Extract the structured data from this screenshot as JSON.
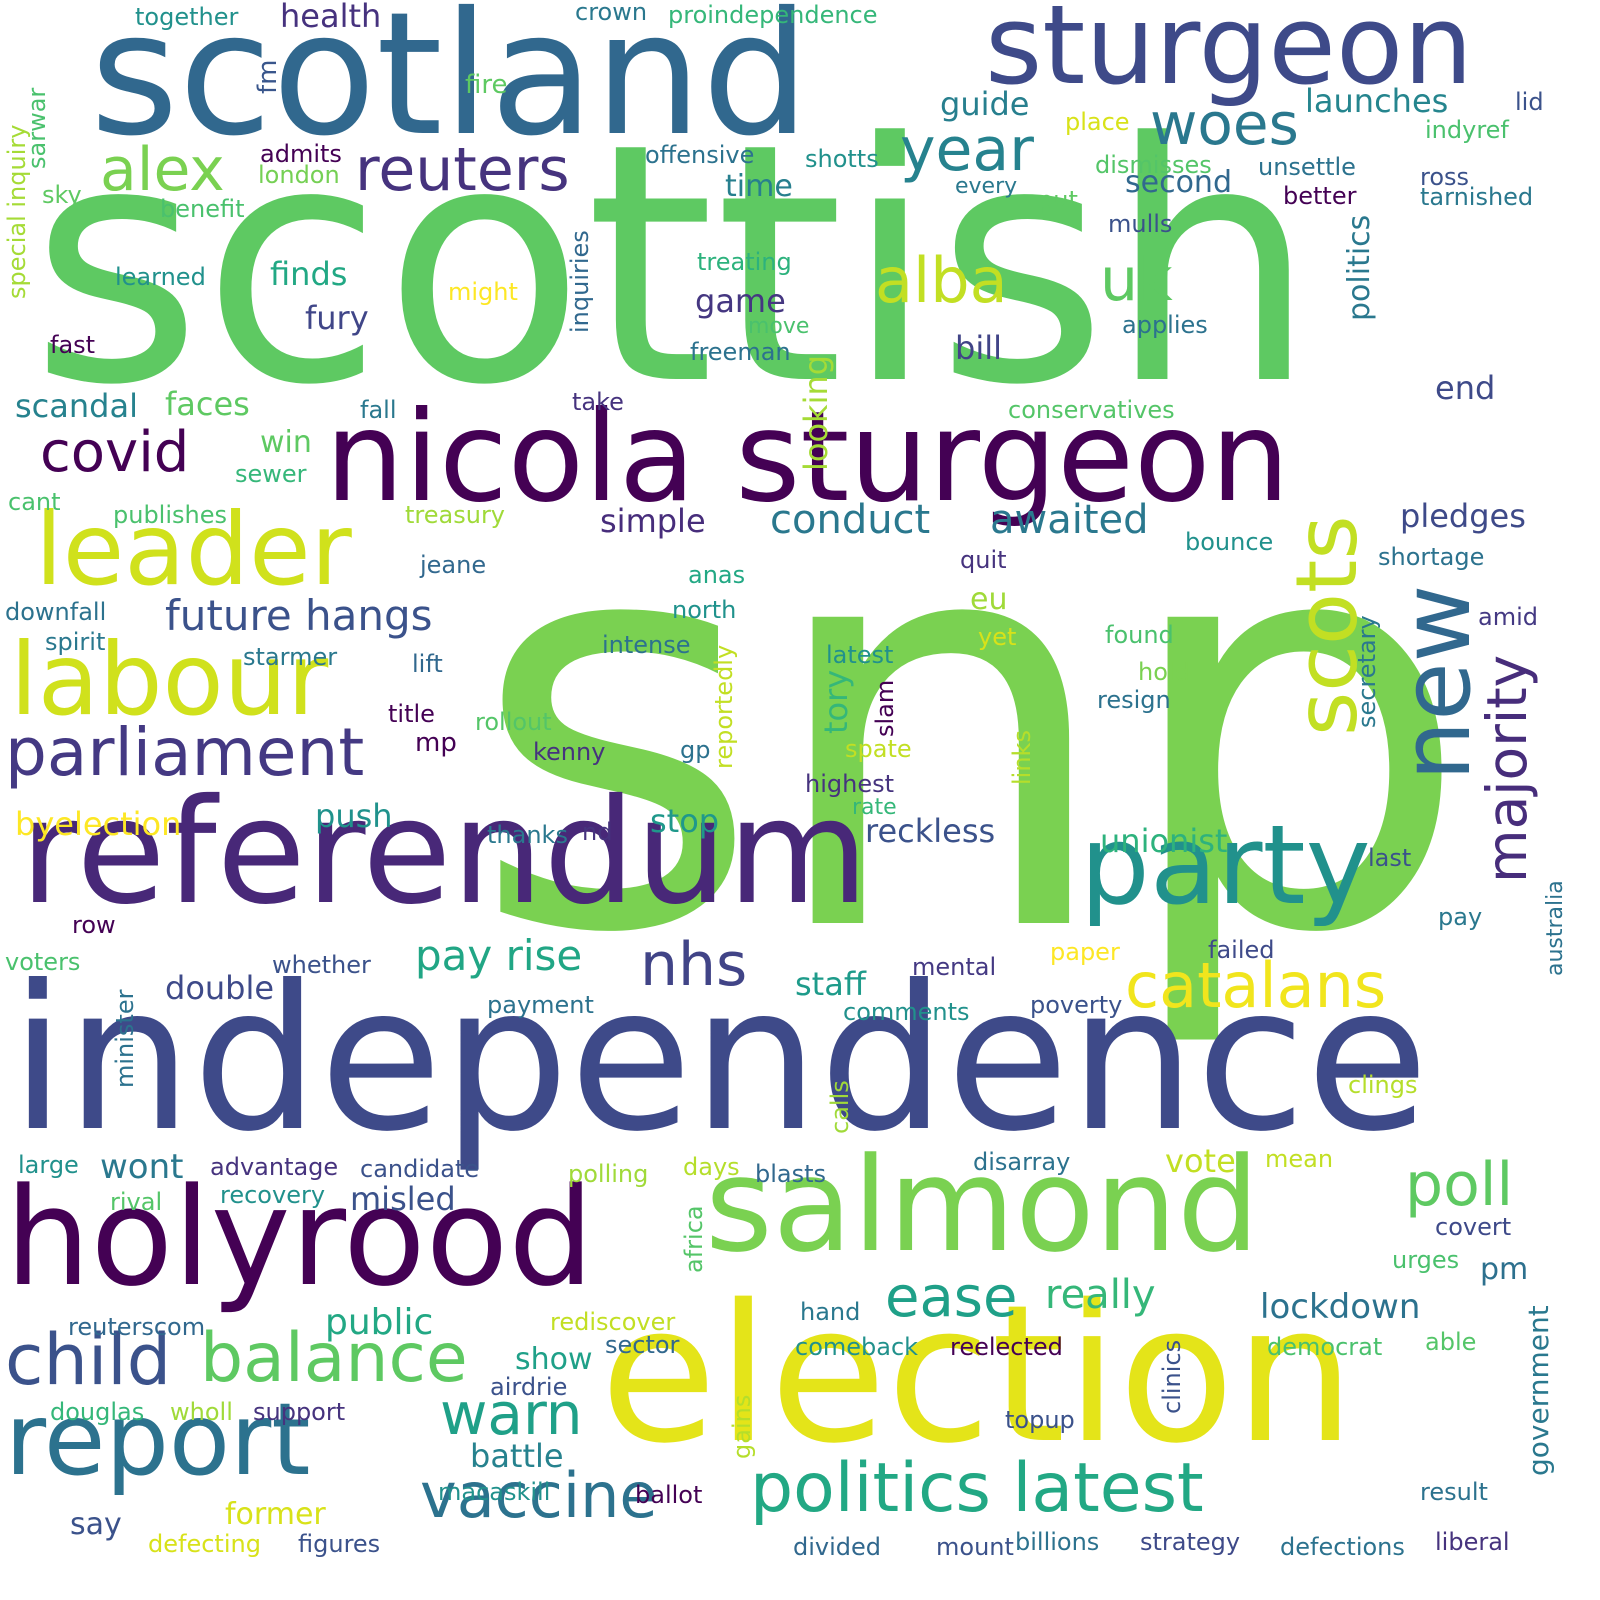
{
  "words": [
    {
      "t": "snp",
      "c": "#7ad151"
    },
    {
      "t": "scottish",
      "c": "#5ec962"
    },
    {
      "t": "independence",
      "c": "#3e4a89"
    },
    {
      "t": "scotland",
      "c": "#31688e"
    },
    {
      "t": "referendum",
      "c": "#482878"
    },
    {
      "t": "election",
      "c": "#e4e419"
    },
    {
      "t": "nicola sturgeon",
      "c": "#440154"
    },
    {
      "t": "sturgeon",
      "c": "#3e4a89"
    },
    {
      "t": "salmond",
      "c": "#7ad151"
    },
    {
      "t": "holyrood",
      "c": "#440154"
    },
    {
      "t": "new",
      "c": "#31688e"
    },
    {
      "t": "leader",
      "c": "#d0e11c"
    },
    {
      "t": "labour",
      "c": "#d0e11c"
    },
    {
      "t": "party",
      "c": "#21918c"
    },
    {
      "t": "scots",
      "c": "#c2df23"
    },
    {
      "t": "report",
      "c": "#2c728e"
    },
    {
      "t": "politics latest",
      "c": "#22a884"
    },
    {
      "t": "reuters",
      "c": "#46337e"
    },
    {
      "t": "parliament",
      "c": "#443983"
    },
    {
      "t": "alex",
      "c": "#7ad151"
    },
    {
      "t": "alba",
      "c": "#c2df23"
    },
    {
      "t": "uk",
      "c": "#5ec962"
    },
    {
      "t": "woes",
      "c": "#2a788e"
    },
    {
      "t": "year",
      "c": "#26828e"
    },
    {
      "t": "covid",
      "c": "#440154"
    },
    {
      "t": "catalans",
      "c": "#f1e51d"
    },
    {
      "t": "majority",
      "c": "#472d7b"
    },
    {
      "t": "balance",
      "c": "#5ec962"
    },
    {
      "t": "child",
      "c": "#3b528b"
    },
    {
      "t": "vaccine",
      "c": "#2c728e"
    },
    {
      "t": "warn",
      "c": "#1fa088"
    },
    {
      "t": "poll",
      "c": "#5ec962"
    },
    {
      "t": "ease",
      "c": "#1fa088"
    },
    {
      "t": "nhs",
      "c": "#414487"
    },
    {
      "t": "pay rise",
      "c": "#21a685"
    },
    {
      "t": "conduct",
      "c": "#2a788e"
    },
    {
      "t": "awaited",
      "c": "#2a788e"
    },
    {
      "t": "future hangs",
      "c": "#3b528b"
    },
    {
      "t": "really",
      "c": "#35b779"
    },
    {
      "t": "lockdown",
      "c": "#2c728e"
    },
    {
      "t": "public",
      "c": "#22a884"
    },
    {
      "t": "government",
      "c": "#2a788e"
    },
    {
      "t": "politics",
      "c": "#2a788e"
    },
    {
      "t": "launches",
      "c": "#25858e"
    },
    {
      "t": "guide",
      "c": "#277f8e"
    },
    {
      "t": "second",
      "c": "#31688e"
    },
    {
      "t": "finds",
      "c": "#22a884"
    },
    {
      "t": "fury",
      "c": "#404688"
    },
    {
      "t": "game",
      "c": "#453781"
    },
    {
      "t": "bill",
      "c": "#414487"
    },
    {
      "t": "scandal",
      "c": "#26828e"
    },
    {
      "t": "faces",
      "c": "#5ec962"
    },
    {
      "t": "byelection",
      "c": "#fde725"
    },
    {
      "t": "push",
      "c": "#20928c"
    },
    {
      "t": "stop",
      "c": "#1f988b"
    },
    {
      "t": "reckless",
      "c": "#3b528b"
    },
    {
      "t": "unionist",
      "c": "#2db27d"
    },
    {
      "t": "double",
      "c": "#3e4a89"
    },
    {
      "t": "staff",
      "c": "#1e9b8a"
    },
    {
      "t": "simple",
      "c": "#472d7b"
    },
    {
      "t": "pledges",
      "c": "#3e4a89"
    },
    {
      "t": "misled",
      "c": "#3b528b"
    },
    {
      "t": "wont",
      "c": "#2a788e"
    },
    {
      "t": "vote",
      "c": "#c2df23"
    },
    {
      "t": "battle",
      "c": "#26828e"
    },
    {
      "t": "show",
      "c": "#1fa088"
    },
    {
      "t": "former",
      "c": "#d8e219"
    },
    {
      "t": "say",
      "c": "#3b528b"
    },
    {
      "t": "pm",
      "c": "#2d708e"
    },
    {
      "t": "health",
      "c": "#46327e"
    },
    {
      "t": "time",
      "c": "#277f8e"
    },
    {
      "t": "looking",
      "c": "#a5db36"
    },
    {
      "t": "tory",
      "c": "#35b779"
    },
    {
      "t": "win",
      "c": "#5ec962"
    },
    {
      "t": "eu",
      "c": "#a0da39"
    },
    {
      "t": "end",
      "c": "#3e4a89"
    },
    {
      "t": "mp",
      "c": "#440154"
    },
    {
      "t": "together",
      "c": "#21918c"
    },
    {
      "t": "crown",
      "c": "#2a788e"
    },
    {
      "t": "proindependence",
      "c": "#35b779"
    },
    {
      "t": "fire",
      "c": "#5ec962"
    },
    {
      "t": "fm",
      "c": "#39568c"
    },
    {
      "t": "sarwar",
      "c": "#4ac16d"
    },
    {
      "t": "special inquiry",
      "c": "#a5db36"
    },
    {
      "t": "lid",
      "c": "#3b528b"
    },
    {
      "t": "place",
      "c": "#d8e219"
    },
    {
      "t": "indyref",
      "c": "#4ac16d"
    },
    {
      "t": "admits",
      "c": "#440154"
    },
    {
      "t": "london",
      "c": "#75d054"
    },
    {
      "t": "offensive",
      "c": "#2c728e"
    },
    {
      "t": "shotts",
      "c": "#21918c"
    },
    {
      "t": "dismisses",
      "c": "#54c568"
    },
    {
      "t": "unsettle",
      "c": "#2c728e"
    },
    {
      "t": "ross",
      "c": "#3b528b"
    },
    {
      "t": "tarnished",
      "c": "#2a788e"
    },
    {
      "t": "sky",
      "c": "#5ec962"
    },
    {
      "t": "benefit",
      "c": "#4ac16d"
    },
    {
      "t": "every",
      "c": "#2a788e"
    },
    {
      "t": "put",
      "c": "#5ec962"
    },
    {
      "t": "better",
      "c": "#440154"
    },
    {
      "t": "mulls",
      "c": "#3b528b"
    },
    {
      "t": "treating",
      "c": "#2db27d"
    },
    {
      "t": "inquiries",
      "c": "#31688e"
    },
    {
      "t": "learned",
      "c": "#21918c"
    },
    {
      "t": "might",
      "c": "#fde725"
    },
    {
      "t": "move",
      "c": "#4ac16d"
    },
    {
      "t": "applies",
      "c": "#2c728e"
    },
    {
      "t": "fast",
      "c": "#440154"
    },
    {
      "t": "freeman",
      "c": "#2c728e"
    },
    {
      "t": "take",
      "c": "#46337e"
    },
    {
      "t": "fall",
      "c": "#2a788e"
    },
    {
      "t": "conservatives",
      "c": "#54c568"
    },
    {
      "t": "sewer",
      "c": "#35b779"
    },
    {
      "t": "cant",
      "c": "#4ac16d"
    },
    {
      "t": "publishes",
      "c": "#4ac16d"
    },
    {
      "t": "treasury",
      "c": "#a0da39"
    },
    {
      "t": "jeane",
      "c": "#31688e"
    },
    {
      "t": "quit",
      "c": "#46337e"
    },
    {
      "t": "bounce",
      "c": "#21918c"
    },
    {
      "t": "shortage",
      "c": "#2c728e"
    },
    {
      "t": "anas",
      "c": "#22a884"
    },
    {
      "t": "downfall",
      "c": "#2c728e"
    },
    {
      "t": "north",
      "c": "#20928c"
    },
    {
      "t": "found",
      "c": "#4ac16d"
    },
    {
      "t": "amid",
      "c": "#443983"
    },
    {
      "t": "spirit",
      "c": "#2a788e"
    },
    {
      "t": "intense",
      "c": "#2c728e"
    },
    {
      "t": "yet",
      "c": "#d8e219"
    },
    {
      "t": "starmer",
      "c": "#2a788e"
    },
    {
      "t": "lift",
      "c": "#31688e"
    },
    {
      "t": "latest",
      "c": "#21918c"
    },
    {
      "t": "hold",
      "c": "#7ad151"
    },
    {
      "t": "secretary",
      "c": "#2a788e"
    },
    {
      "t": "reportedly",
      "c": "#c2df23"
    },
    {
      "t": "slam",
      "c": "#440154"
    },
    {
      "t": "resign",
      "c": "#2c728e"
    },
    {
      "t": "title",
      "c": "#440154"
    },
    {
      "t": "rollout",
      "c": "#54c568"
    },
    {
      "t": "kenny",
      "c": "#46337e"
    },
    {
      "t": "gp",
      "c": "#2c728e"
    },
    {
      "t": "spate",
      "c": "#c2df23"
    },
    {
      "t": "highest",
      "c": "#46337e"
    },
    {
      "t": "links",
      "c": "#b5de2b"
    },
    {
      "t": "rate",
      "c": "#35b779"
    },
    {
      "t": "thanks",
      "c": "#2a788e"
    },
    {
      "t": "nd",
      "c": "#46337e"
    },
    {
      "t": "last",
      "c": "#3b528b"
    },
    {
      "t": "row",
      "c": "#440154"
    },
    {
      "t": "australia",
      "c": "#2c728e"
    },
    {
      "t": "pay",
      "c": "#2a788e"
    },
    {
      "t": "failed",
      "c": "#3e4a89"
    },
    {
      "t": "paper",
      "c": "#fde725"
    },
    {
      "t": "voters",
      "c": "#4ac16d"
    },
    {
      "t": "minister",
      "c": "#2c728e"
    },
    {
      "t": "whether",
      "c": "#3b528b"
    },
    {
      "t": "mental",
      "c": "#443983"
    },
    {
      "t": "payment",
      "c": "#2c728e"
    },
    {
      "t": "comments",
      "c": "#21918c"
    },
    {
      "t": "poverty",
      "c": "#3b528b"
    },
    {
      "t": "calls",
      "c": "#a0da39"
    },
    {
      "t": "clings",
      "c": "#b5de2b"
    },
    {
      "t": "large",
      "c": "#21918c"
    },
    {
      "t": "advantage",
      "c": "#46337e"
    },
    {
      "t": "candidate",
      "c": "#3b528b"
    },
    {
      "t": "polling",
      "c": "#a0da39"
    },
    {
      "t": "days",
      "c": "#b5de2b"
    },
    {
      "t": "blasts",
      "c": "#31688e"
    },
    {
      "t": "disarray",
      "c": "#2c728e"
    },
    {
      "t": "mean",
      "c": "#c2df23"
    },
    {
      "t": "rival",
      "c": "#54c568"
    },
    {
      "t": "recovery",
      "c": "#21918c"
    },
    {
      "t": "africa",
      "c": "#54c568"
    },
    {
      "t": "covert",
      "c": "#3e4a89"
    },
    {
      "t": "urges",
      "c": "#4ac16d"
    },
    {
      "t": "hand",
      "c": "#2a788e"
    },
    {
      "t": "rediscover",
      "c": "#c2df23"
    },
    {
      "t": "reuterscom",
      "c": "#31688e"
    },
    {
      "t": "sector",
      "c": "#31688e"
    },
    {
      "t": "comeback",
      "c": "#21918c"
    },
    {
      "t": "reelected",
      "c": "#440154"
    },
    {
      "t": "democrat",
      "c": "#4ac16d"
    },
    {
      "t": "able",
      "c": "#54c568"
    },
    {
      "t": "clinics",
      "c": "#3b528b"
    },
    {
      "t": "airdrie",
      "c": "#3b528b"
    },
    {
      "t": "douglas",
      "c": "#35b779"
    },
    {
      "t": "wholl",
      "c": "#a0da39"
    },
    {
      "t": "support",
      "c": "#46337e"
    },
    {
      "t": "gains",
      "c": "#b5de2b"
    },
    {
      "t": "topup",
      "c": "#3b528b"
    },
    {
      "t": "macaskill",
      "c": "#21918c"
    },
    {
      "t": "ballot",
      "c": "#440154"
    },
    {
      "t": "result",
      "c": "#2c728e"
    },
    {
      "t": "defecting",
      "c": "#d8e219"
    },
    {
      "t": "figures",
      "c": "#3b528b"
    },
    {
      "t": "divided",
      "c": "#31688e"
    },
    {
      "t": "mount",
      "c": "#3b528b"
    },
    {
      "t": "billions",
      "c": "#2c728e"
    },
    {
      "t": "strategy",
      "c": "#3e4a89"
    },
    {
      "t": "defections",
      "c": "#2c728e"
    },
    {
      "t": "liberal",
      "c": "#46337e"
    }
  ]
}
